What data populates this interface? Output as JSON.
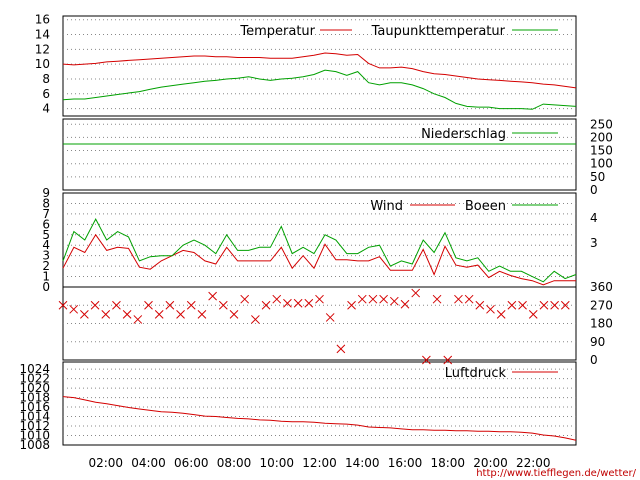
{
  "chart_data": [
    {
      "type": "line",
      "panel": "temperature",
      "x": [
        "00:30",
        "01:00",
        "01:30",
        "02:00",
        "02:30",
        "03:00",
        "03:30",
        "04:00",
        "04:30",
        "05:00",
        "05:30",
        "06:00",
        "06:30",
        "07:00",
        "07:30",
        "08:00",
        "08:30",
        "09:00",
        "09:30",
        "10:00",
        "10:30",
        "11:00",
        "11:30",
        "12:00",
        "12:30",
        "13:00",
        "13:30",
        "14:00",
        "14:30",
        "15:00",
        "15:30",
        "16:00",
        "16:30",
        "17:00",
        "17:30",
        "18:00",
        "18:30",
        "19:00",
        "19:30",
        "20:00",
        "20:30",
        "21:00",
        "21:30",
        "22:00",
        "22:30",
        "23:00",
        "23:30",
        "24:00"
      ],
      "series": [
        {
          "name": "Temperatur",
          "color": "#d40000",
          "values": [
            10.0,
            9.9,
            10.0,
            10.1,
            10.3,
            10.4,
            10.5,
            10.6,
            10.7,
            10.8,
            10.9,
            11.0,
            11.1,
            11.1,
            11.0,
            11.0,
            10.9,
            10.9,
            10.9,
            10.8,
            10.8,
            10.8,
            11.0,
            11.2,
            11.5,
            11.4,
            11.2,
            11.3,
            10.1,
            9.5,
            9.5,
            9.6,
            9.4,
            9.0,
            8.7,
            8.6,
            8.4,
            8.2,
            8.0,
            7.9,
            7.8,
            7.7,
            7.6,
            7.5,
            7.3,
            7.2,
            7.0,
            6.8
          ]
        },
        {
          "name": "Taupunkttemperatur",
          "color": "#00a000",
          "values": [
            5.2,
            5.3,
            5.3,
            5.5,
            5.7,
            5.9,
            6.1,
            6.3,
            6.6,
            6.9,
            7.1,
            7.3,
            7.5,
            7.7,
            7.8,
            8.0,
            8.1,
            8.3,
            8.0,
            7.8,
            8.0,
            8.1,
            8.3,
            8.6,
            9.2,
            9.0,
            8.5,
            9.0,
            7.5,
            7.2,
            7.5,
            7.5,
            7.2,
            6.7,
            6.0,
            5.5,
            4.7,
            4.3,
            4.2,
            4.2,
            4.0,
            4.0,
            4.0,
            3.9,
            4.6,
            4.5,
            4.4,
            4.3
          ]
        }
      ],
      "yticks": [
        4,
        6,
        8,
        10,
        12,
        14,
        16
      ],
      "ylim": [
        3,
        16.5
      ]
    },
    {
      "type": "line",
      "panel": "precipitation",
      "series": [
        {
          "name": "Niederschlag",
          "color": "#00a000",
          "values": [
            175,
            175
          ]
        }
      ],
      "yticks": [
        0,
        50,
        100,
        150,
        200,
        250
      ],
      "ylim": [
        0,
        270
      ]
    },
    {
      "type": "line",
      "panel": "wind",
      "series": [
        {
          "name": "Wind",
          "color": "#d40000",
          "values": [
            1.8,
            3.8,
            3.3,
            5.0,
            3.5,
            3.8,
            3.7,
            1.9,
            1.7,
            2.5,
            3.0,
            3.5,
            3.3,
            2.5,
            2.2,
            3.8,
            2.5,
            2.5,
            2.5,
            2.5,
            3.8,
            1.8,
            3.0,
            1.8,
            4.1,
            2.6,
            2.6,
            2.5,
            2.5,
            2.9,
            1.6,
            1.6,
            1.6,
            3.6,
            1.2,
            3.9,
            2.1,
            1.9,
            2.1,
            0.9,
            1.5,
            1.1,
            0.8,
            0.6,
            0.2,
            0.6,
            0.6,
            0.6
          ]
        },
        {
          "name": "Boeen",
          "color": "#00a000",
          "values": [
            2.5,
            5.3,
            4.5,
            6.5,
            4.5,
            5.3,
            4.8,
            2.5,
            2.9,
            3.0,
            3.0,
            4.0,
            4.5,
            4.0,
            3.2,
            5.0,
            3.5,
            3.5,
            3.8,
            3.8,
            5.8,
            3.2,
            3.8,
            3.2,
            5.0,
            4.5,
            3.2,
            3.2,
            3.8,
            4.0,
            2.0,
            2.5,
            2.2,
            4.5,
            3.3,
            5.2,
            2.8,
            2.5,
            2.8,
            1.5,
            2.0,
            1.5,
            1.5,
            1.0,
            0.5,
            1.5,
            0.8,
            1.2
          ]
        }
      ],
      "yticks": [
        0,
        1,
        2,
        3,
        4,
        5,
        6,
        7,
        8,
        9
      ],
      "ylim": [
        0,
        9
      ]
    },
    {
      "type": "scatter",
      "panel": "wind_direction",
      "series": [
        {
          "name": "",
          "color": "#d40000",
          "marker": "x",
          "values": [
            270,
            250,
            225,
            270,
            225,
            270,
            225,
            200,
            270,
            225,
            270,
            225,
            270,
            225,
            315,
            270,
            225,
            300,
            200,
            270,
            300,
            280,
            280,
            280,
            300,
            210,
            55,
            270,
            300,
            300,
            300,
            290,
            275,
            330,
            0,
            300,
            0,
            300,
            300,
            270,
            250,
            225,
            270,
            270,
            225,
            270,
            270,
            270
          ]
        }
      ],
      "yticks": [
        0,
        90,
        180,
        270,
        360
      ],
      "ylim": [
        0,
        360
      ]
    },
    {
      "type": "line",
      "panel": "pressure",
      "series": [
        {
          "name": "Luftdruck",
          "color": "#d40000",
          "values": [
            1018.2,
            1018.0,
            1017.5,
            1017.0,
            1016.7,
            1016.3,
            1015.9,
            1015.6,
            1015.3,
            1015.0,
            1014.9,
            1014.7,
            1014.4,
            1014.1,
            1014.0,
            1013.8,
            1013.6,
            1013.5,
            1013.3,
            1013.2,
            1013.0,
            1012.9,
            1012.9,
            1012.8,
            1012.6,
            1012.5,
            1012.4,
            1012.2,
            1011.8,
            1011.7,
            1011.6,
            1011.4,
            1011.2,
            1011.2,
            1011.1,
            1011.1,
            1011.0,
            1011.0,
            1010.9,
            1010.9,
            1010.8,
            1010.8,
            1010.7,
            1010.5,
            1010.1,
            1009.9,
            1009.5,
            1009.0
          ]
        }
      ],
      "yticks": [
        1008,
        1010,
        1012,
        1014,
        1016,
        1018,
        1020,
        1022,
        1024
      ],
      "ylim": [
        1008,
        1025.5
      ]
    }
  ],
  "x_axis_labels": [
    "02:00",
    "04:00",
    "06:00",
    "08:00",
    "10:00",
    "12:00",
    "14:00",
    "16:00",
    "18:00",
    "20:00",
    "22:00"
  ],
  "legend_labels": {
    "temperatur": "Temperatur",
    "taupunkt": "Taupunkttemperatur",
    "niederschlag": "Niederschlag",
    "wind": "Wind",
    "boeen": "Boeen",
    "luftdruck": "Luftdruck"
  },
  "right_axis_wind": [
    "4",
    "3"
  ],
  "credit": "http://www.tiefflegen.de/wetter/"
}
